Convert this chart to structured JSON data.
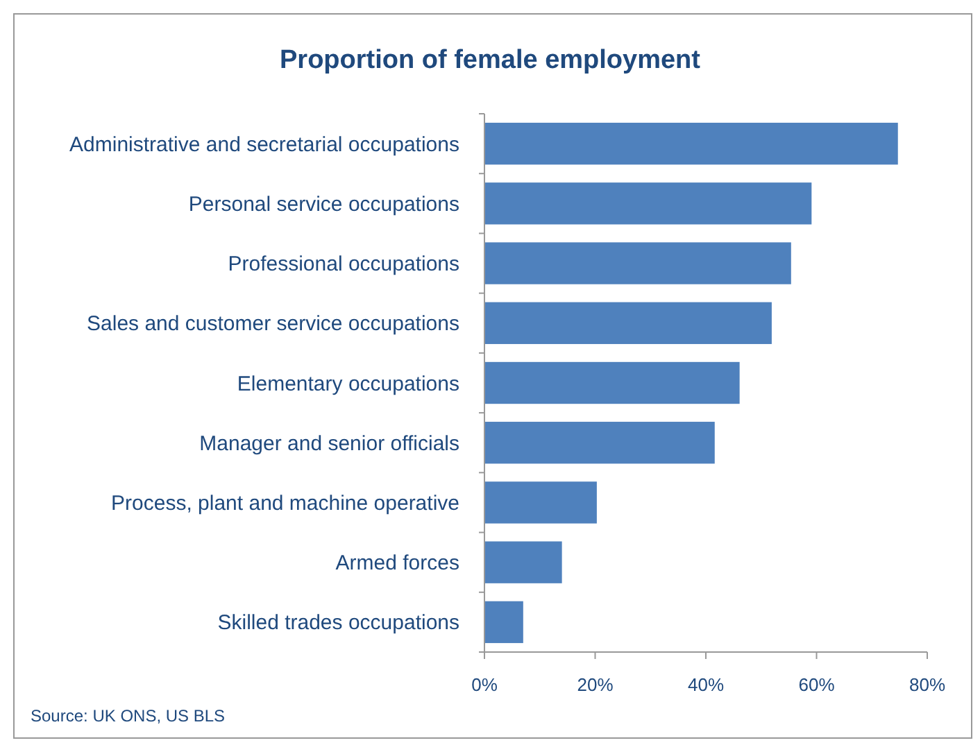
{
  "chart_data": {
    "type": "bar",
    "orientation": "horizontal",
    "title": "Proportion of female employment",
    "categories": [
      "Administrative and secretarial occupations",
      "Personal service occupations",
      "Professional occupations",
      "Sales and customer service occupations",
      "Elementary occupations",
      "Manager and senior officials",
      "Process, plant and machine operative",
      "Armed forces",
      "Skilled trades occupations"
    ],
    "values": [
      0.747,
      0.591,
      0.554,
      0.519,
      0.461,
      0.416,
      0.203,
      0.14,
      0.07
    ],
    "color": "#4f81bd",
    "xlim": [
      0,
      0.8
    ],
    "xticks": [
      {
        "value": 0,
        "label": "0%"
      },
      {
        "value": 0.2,
        "label": "20%"
      },
      {
        "value": 0.4,
        "label": "40%"
      },
      {
        "value": 0.6,
        "label": "60%"
      },
      {
        "value": 0.8,
        "label": "80%"
      }
    ],
    "grid": false,
    "annotations": [
      "Source: UK ONS, US BLS"
    ]
  }
}
